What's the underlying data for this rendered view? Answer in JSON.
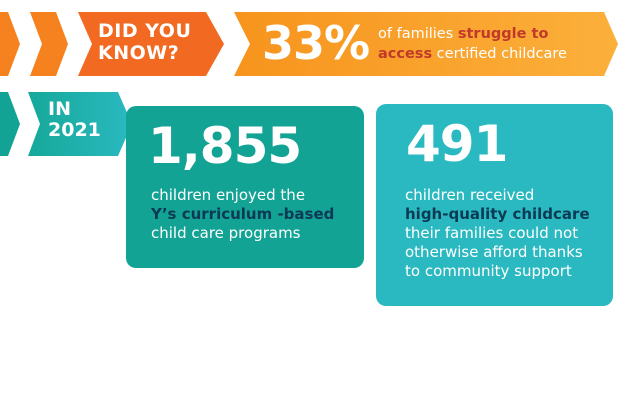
{
  "colors": {
    "orange_dark": "#f26a21",
    "orange_mid": "#f7941d",
    "orange_light": "#fbb03b",
    "teal_dark": "#13a394",
    "teal_light": "#2ab9c0",
    "highlight_red": "#c0392b",
    "highlight_navy": "#0b3a55"
  },
  "banner": {
    "label_line1": "DID YOU",
    "label_line2": "KNOW?",
    "stat": "33%",
    "fact_part1": "of families ",
    "fact_part2": "struggle to",
    "fact_part3": "access",
    "fact_part4": " certified childcare",
    "icon": "chevron-arrow-icon"
  },
  "year_tag": {
    "line1": "IN",
    "line2": "2021"
  },
  "cards": [
    {
      "number": "1,855",
      "line1": "children enjoyed the",
      "line2_highlight": "Y’s curriculum -based",
      "line3": "child care programs"
    },
    {
      "number": "491",
      "line1": "children received",
      "line2_highlight": "high-quality childcare",
      "line3": "their families could not",
      "line4": "otherwise afford thanks",
      "line5": "to community support"
    }
  ]
}
